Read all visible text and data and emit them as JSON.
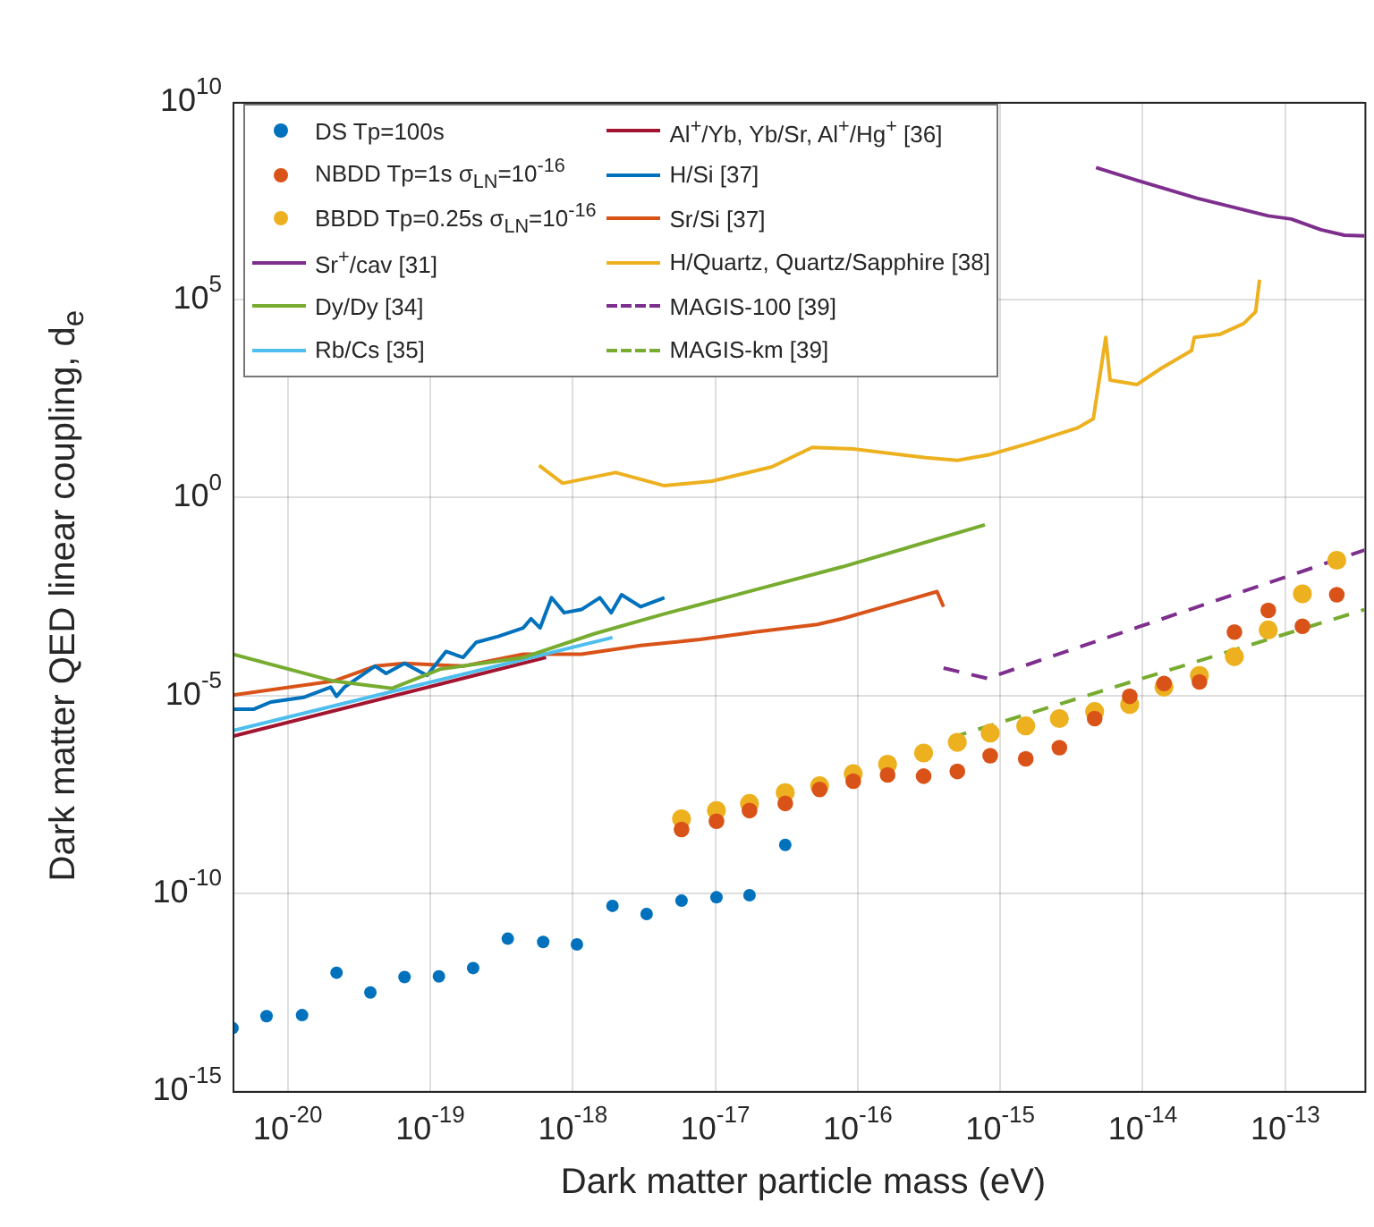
{
  "chart_data": {
    "type": "line",
    "xlabel": "Dark matter particle mass (eV)",
    "ylabel": "Dark matter QED linear coupling, d$_{e}$",
    "log": "xy",
    "grid": true,
    "legend": "top left",
    "xlim": [
      4.1e-21,
      3.6e-13
    ],
    "ylim": [
      1e-15,
      10000000000.0
    ],
    "xticks": [
      {
        "value": 1e-20,
        "label": "10$^{-20}$"
      },
      {
        "value": 1e-19,
        "label": "10$^{-19}$"
      },
      {
        "value": 1e-18,
        "label": "10$^{-18}$"
      },
      {
        "value": 1e-17,
        "label": "10$^{-17}$"
      },
      {
        "value": 1e-16,
        "label": "10$^{-16}$"
      },
      {
        "value": 1e-15,
        "label": "10$^{-15}$"
      },
      {
        "value": 1e-14,
        "label": "10$^{-14}$"
      },
      {
        "value": 1e-13,
        "label": "10$^{-13}$"
      }
    ],
    "yticks": [
      {
        "value": 1e-15,
        "label": "10$^{-15}$"
      },
      {
        "value": 1e-10,
        "label": "10$^{-10}$"
      },
      {
        "value": 1e-05,
        "label": "10$^{-5}$"
      },
      {
        "value": 1,
        "label": "10$^{0}$"
      },
      {
        "value": 100000.0,
        "label": "10$^{5}$"
      },
      {
        "value": 10000000000.0,
        "label": "10$^{10}$"
      }
    ],
    "series": [
      {
        "name": "DS Tp=100s",
        "type": "scatter",
        "marker": "circle",
        "color": "#0072bd",
        "x": [
          4.1e-21,
          7.1e-21,
          1.26e-20,
          2.2e-20,
          3.8e-20,
          6.6e-20,
          1.15e-19,
          2e-19,
          3.5e-19,
          6.2e-19,
          1.07e-18,
          1.9e-18,
          3.3e-18,
          5.8e-18,
          1.02e-17,
          1.74e-17,
          3.1e-17
        ],
        "values": [
          3.9e-14,
          7.8e-14,
          8.3e-14,
          9.8e-13,
          3.1e-13,
          7.6e-13,
          7.9e-13,
          1.29e-12,
          7.1e-12,
          5.9e-12,
          5.1e-12,
          4.8e-11,
          3e-11,
          6.5e-11,
          7.9e-11,
          8.9e-11,
          1.66e-09
        ]
      },
      {
        "name": "NBDD Tp=1s σ$_{LN}$=10$^{-16}$",
        "type": "scatter",
        "marker": "circle",
        "color": "#d95319",
        "x": [
          5.8e-18,
          1.02e-17,
          1.74e-17,
          3.1e-17,
          5.4e-17,
          9.3e-17,
          1.62e-16,
          2.9e-16,
          5e-16,
          8.5e-16,
          1.51e-15,
          2.6e-15,
          4.6e-15,
          8.1e-15,
          1.41e-14,
          2.5e-14,
          4.4e-14,
          7.6e-14,
          1.32e-13,
          2.3e-13
        ],
        "values": [
          4.1e-09,
          6.6e-09,
          1.23e-08,
          1.86e-08,
          4.2e-08,
          6.8e-08,
          9.8e-08,
          9.1e-08,
          1.2e-07,
          3e-07,
          2.5e-07,
          4.8e-07,
          2.6e-06,
          9.5e-06,
          2e-05,
          2.2e-05,
          0.0004,
          0.00141,
          0.00056,
          0.0035
        ]
      },
      {
        "name": "BBDD Tp=0.25s σ$_{LN}$=10$^{-16}$",
        "type": "scatter",
        "marker": "circle",
        "color": "#edb120",
        "x": [
          5.8e-18,
          1.02e-17,
          1.74e-17,
          3.1e-17,
          5.4e-17,
          9.3e-17,
          1.62e-16,
          2.9e-16,
          5e-16,
          8.5e-16,
          1.51e-15,
          2.6e-15,
          4.6e-15,
          8.1e-15,
          1.41e-14,
          2.5e-14,
          4.4e-14,
          7.6e-14,
          1.32e-13,
          2.3e-13
        ],
        "values": [
          7.6e-09,
          1.23e-08,
          1.86e-08,
          3.5e-08,
          5.2e-08,
          1.05e-07,
          1.82e-07,
          3.5e-07,
          6.5e-07,
          1.12e-06,
          1.7e-06,
          2.6e-06,
          3.9e-06,
          5.9e-06,
          1.62e-05,
          3.2e-05,
          9.5e-05,
          0.00045,
          0.0037,
          0.026
        ]
      },
      {
        "name": "Sr$^{+}$/cav [31]",
        "line_style": "solid",
        "color": "#7e2f8e",
        "x": [
          4.7e-15,
          9.1e-15,
          2.4e-14,
          7.6e-14,
          1.1e-13,
          1.78e-13,
          2.6e-13,
          3.6e-13
        ],
        "values": [
          220000000.0,
          105000000.0,
          37000000.0,
          13200000.0,
          11000000.0,
          5900000.0,
          4300000.0,
          4100000.0
        ]
      },
      {
        "name": "Dy/Dy [34]",
        "line_style": "solid",
        "color": "#77ac30",
        "x": [
          4.1e-21,
          2.1e-20,
          5.4e-20,
          1.17e-19,
          4.5e-19,
          1.41e-18,
          4.4e-18,
          2e-17,
          7.8e-17,
          7.8e-16
        ],
        "values": [
          0.00011,
          2.3e-05,
          1.51e-05,
          4.6e-05,
          9.1e-05,
          0.00036,
          0.00115,
          0.0049,
          0.0178,
          0.204
        ]
      },
      {
        "name": "Rb/Cs [35]",
        "line_style": "solid",
        "color": "#4dbeee",
        "x": [
          4.1e-21,
          1.9e-18
        ],
        "values": [
          1.29e-06,
          0.00029
        ]
      },
      {
        "name": "Al$^{+}$/Yb, Yb/Sr, Al$^{+}$/Hg$^{+}$ [36]",
        "line_style": "solid",
        "color": "#a2142f",
        "x": [
          4.1e-21,
          6.5e-19
        ],
        "values": [
          9.3e-07,
          9.1e-05
        ]
      },
      {
        "name": "H/Si [37]",
        "line_style": "solid",
        "color": "#0072bd",
        "x": [
          4.1e-21,
          5.8e-21,
          7.6e-21,
          1.29e-20,
          2e-20,
          2.2e-20,
          2.5e-20,
          4.1e-20,
          4.9e-20,
          6.6e-20,
          9.5e-20,
          1.29e-19,
          1.7e-19,
          2.1e-19,
          3e-19,
          4.5e-19,
          5.1e-19,
          5.9e-19,
          7.1e-19,
          8.7e-19,
          1.15e-18,
          1.55e-18,
          1.86e-18,
          2.2e-18,
          3e-18,
          4.4e-18
        ],
        "values": [
          4.5e-06,
          4.5e-06,
          6.8e-06,
          8.9e-06,
          1.62e-05,
          9.5e-06,
          1.62e-05,
          5.5e-05,
          3.6e-05,
          6.5e-05,
          3.2e-05,
          0.000129,
          9.1e-05,
          0.00022,
          0.00031,
          0.00051,
          0.00087,
          0.00051,
          0.00295,
          0.00123,
          0.00148,
          0.00295,
          0.00123,
          0.0035,
          0.00174,
          0.00295
        ]
      },
      {
        "name": "Sr/Si [37]",
        "line_style": "solid",
        "color": "#d95319",
        "x": [
          4.1e-21,
          2.1e-20,
          4.1e-20,
          6.6e-20,
          1.7e-19,
          4.5e-19,
          1.15e-18,
          3e-18,
          7.8e-18,
          2e-17,
          5.2e-17,
          7.8e-17,
          3.6e-16,
          4e-16
        ],
        "values": [
          1.02e-05,
          2.3e-05,
          5.5e-05,
          6.5e-05,
          5.5e-05,
          0.00011,
          0.00011,
          0.000182,
          0.00026,
          0.00041,
          0.00062,
          0.00087,
          0.0042,
          0.00174
        ]
      },
      {
        "name": "H/Quartz, Quartz/Sapphire [38]",
        "line_style": "solid",
        "color": "#edb120",
        "x": [
          5.8e-19,
          8.5e-19,
          2e-18,
          4.4e-18,
          9.5e-18,
          2.5e-17,
          4.8e-17,
          9.3e-17,
          3e-16,
          5e-16,
          8.5e-16,
          1.66e-15,
          3.5e-15,
          4.5e-15,
          5.5e-15,
          5.9e-15,
          9.1e-15,
          1.35e-14,
          2.2e-14,
          2.3e-14,
          3.5e-14,
          5.1e-14,
          6.2e-14,
          6.6e-14
        ],
        "values": [
          6.5,
          2.3,
          4.3,
          2.0,
          2.6,
          6.0,
          18.6,
          17,
          10.2,
          8.7,
          12.3,
          24.5,
          58,
          98,
          11200.0,
          930,
          720,
          1860.0,
          5200.0,
          11200.0,
          13500.0,
          25000.0,
          50000.0,
          320000.0
        ]
      },
      {
        "name": "MAGIS-100 [39]",
        "line_style": "dashed",
        "color": "#7e2f8e",
        "x": [
          4e-16,
          8.1e-16,
          3.6e-13
        ],
        "values": [
          4.9e-05,
          2.7e-05,
          0.047
        ]
      },
      {
        "name": "MAGIS-km [39]",
        "line_style": "dashed",
        "color": "#77ac30",
        "x": [
          4.5e-16,
          3.6e-13
        ],
        "values": [
          8.5e-07,
          0.00148
        ]
      }
    ]
  }
}
